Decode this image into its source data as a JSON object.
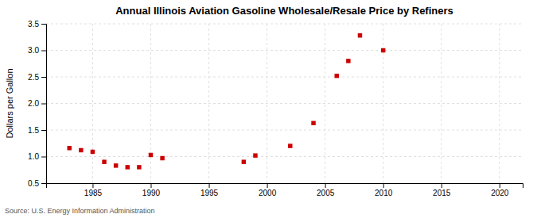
{
  "chart_data": {
    "type": "scatter",
    "title": "Annual Illinois Aviation Gasoline Wholesale/Resale Price by Refiners",
    "ylabel": "Dollars per Gallon",
    "annotation": "Source: U.S. Energy Information Administration",
    "x": [
      1983,
      1984,
      1985,
      1986,
      1987,
      1988,
      1989,
      1990,
      1991,
      1998,
      1999,
      2002,
      2004,
      2006,
      2007,
      2008,
      2010
    ],
    "values": [
      1.16,
      1.12,
      1.09,
      0.9,
      0.83,
      0.8,
      0.8,
      1.03,
      0.97,
      0.9,
      1.02,
      1.2,
      1.63,
      2.52,
      2.8,
      3.28,
      3.0
    ],
    "color": "#cc0000",
    "marker": "square",
    "xlim": [
      1981,
      2022
    ],
    "ylim": [
      0.5,
      3.5
    ],
    "xticks": [
      1985,
      1990,
      1995,
      2000,
      2005,
      2010,
      2015,
      2020
    ],
    "yticks": [
      0.5,
      {
        "value": 1.0,
        "label": "1.0"
      },
      1.5,
      {
        "value": 2.0,
        "label": "2.0"
      },
      2.5,
      {
        "value": 3.0,
        "label": "3.0"
      },
      3.5
    ],
    "grid": true
  }
}
